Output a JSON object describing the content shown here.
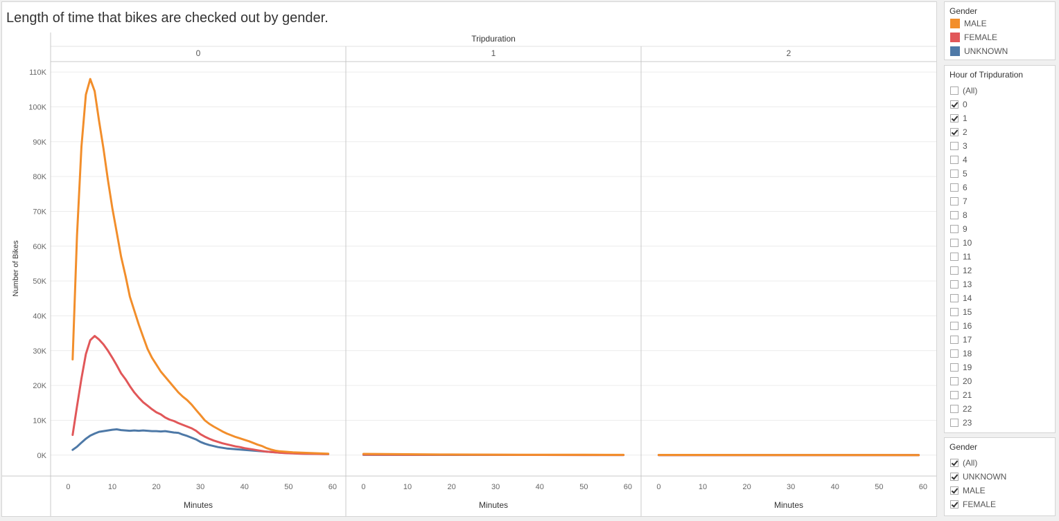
{
  "title": "Length of time that bikes are checked out by gender.",
  "chart_data": {
    "type": "line",
    "title": "Length of time that bikes are checked out by gender.",
    "column_header": "Tripduration",
    "panels": [
      "0",
      "1",
      "2"
    ],
    "xlabel": "Minutes",
    "ylabel": "Number of Bikes",
    "xlim": [
      -4,
      63
    ],
    "ylim": [
      -6000,
      113000
    ],
    "x_ticks": [
      0,
      10,
      20,
      30,
      40,
      50,
      60
    ],
    "y_ticks": [
      0,
      10000,
      20000,
      30000,
      40000,
      50000,
      60000,
      70000,
      80000,
      90000,
      100000,
      110000
    ],
    "y_tick_labels": [
      "0K",
      "10K",
      "20K",
      "30K",
      "40K",
      "50K",
      "60K",
      "70K",
      "80K",
      "90K",
      "100K",
      "110K"
    ],
    "grid": true,
    "series": [
      {
        "name": "MALE",
        "color": "#f28e2b",
        "panels": [
          [
            [
              1,
              27500
            ],
            [
              2,
              63000
            ],
            [
              3,
              88500
            ],
            [
              4,
              103500
            ],
            [
              5,
              108000
            ],
            [
              6,
              104500
            ],
            [
              7,
              96000
            ],
            [
              8,
              88000
            ],
            [
              9,
              79000
            ],
            [
              10,
              71000
            ],
            [
              11,
              64000
            ],
            [
              12,
              57000
            ],
            [
              13,
              51500
            ],
            [
              14,
              45500
            ],
            [
              15,
              41500
            ],
            [
              16,
              37500
            ],
            [
              17,
              34000
            ],
            [
              18,
              30500
            ],
            [
              19,
              28000
            ],
            [
              20,
              26000
            ],
            [
              21,
              24000
            ],
            [
              22,
              22500
            ],
            [
              23,
              21000
            ],
            [
              24,
              19500
            ],
            [
              25,
              18000
            ],
            [
              26,
              16800
            ],
            [
              27,
              15800
            ],
            [
              28,
              14500
            ],
            [
              29,
              13000
            ],
            [
              30,
              11500
            ],
            [
              31,
              10000
            ],
            [
              32,
              9000
            ],
            [
              33,
              8200
            ],
            [
              34,
              7500
            ],
            [
              35,
              6800
            ],
            [
              36,
              6200
            ],
            [
              37,
              5700
            ],
            [
              38,
              5200
            ],
            [
              39,
              4800
            ],
            [
              40,
              4400
            ],
            [
              41,
              4000
            ],
            [
              42,
              3500
            ],
            [
              43,
              3000
            ],
            [
              44,
              2600
            ],
            [
              45,
              2000
            ],
            [
              46,
              1600
            ],
            [
              47,
              1300
            ],
            [
              48,
              1100
            ],
            [
              49,
              1000
            ],
            [
              50,
              900
            ],
            [
              51,
              800
            ],
            [
              52,
              750
            ],
            [
              53,
              700
            ],
            [
              54,
              650
            ],
            [
              55,
              600
            ],
            [
              56,
              550
            ],
            [
              57,
              500
            ],
            [
              58,
              450
            ],
            [
              59,
              400
            ]
          ],
          [
            [
              0,
              350
            ],
            [
              5,
              300
            ],
            [
              10,
              250
            ],
            [
              15,
              200
            ],
            [
              20,
              180
            ],
            [
              25,
              150
            ],
            [
              30,
              130
            ],
            [
              35,
              120
            ],
            [
              40,
              110
            ],
            [
              45,
              100
            ],
            [
              50,
              90
            ],
            [
              55,
              80
            ],
            [
              59,
              70
            ]
          ],
          [
            [
              0,
              60
            ],
            [
              10,
              50
            ],
            [
              20,
              45
            ],
            [
              30,
              40
            ],
            [
              40,
              35
            ],
            [
              50,
              30
            ],
            [
              59,
              25
            ]
          ]
        ]
      },
      {
        "name": "FEMALE",
        "color": "#e15759",
        "panels": [
          [
            [
              1,
              5800
            ],
            [
              2,
              14000
            ],
            [
              3,
              22000
            ],
            [
              4,
              29000
            ],
            [
              5,
              33000
            ],
            [
              6,
              34200
            ],
            [
              7,
              33200
            ],
            [
              8,
              31800
            ],
            [
              9,
              30000
            ],
            [
              10,
              28000
            ],
            [
              11,
              25800
            ],
            [
              12,
              23500
            ],
            [
              13,
              21800
            ],
            [
              14,
              19800
            ],
            [
              15,
              18000
            ],
            [
              16,
              16500
            ],
            [
              17,
              15200
            ],
            [
              18,
              14200
            ],
            [
              19,
              13200
            ],
            [
              20,
              12300
            ],
            [
              21,
              11700
            ],
            [
              22,
              10800
            ],
            [
              23,
              10200
            ],
            [
              24,
              9800
            ],
            [
              25,
              9200
            ],
            [
              26,
              8700
            ],
            [
              27,
              8200
            ],
            [
              28,
              7700
            ],
            [
              29,
              7000
            ],
            [
              30,
              6000
            ],
            [
              31,
              5300
            ],
            [
              32,
              4700
            ],
            [
              33,
              4200
            ],
            [
              34,
              3800
            ],
            [
              35,
              3400
            ],
            [
              36,
              3100
            ],
            [
              37,
              2800
            ],
            [
              38,
              2500
            ],
            [
              39,
              2300
            ],
            [
              40,
              2000
            ],
            [
              41,
              1800
            ],
            [
              42,
              1600
            ],
            [
              43,
              1400
            ],
            [
              44,
              1200
            ],
            [
              45,
              1000
            ],
            [
              46,
              900
            ],
            [
              47,
              800
            ],
            [
              48,
              700
            ],
            [
              49,
              600
            ],
            [
              50,
              550
            ],
            [
              51,
              500
            ],
            [
              52,
              450
            ],
            [
              53,
              420
            ],
            [
              54,
              400
            ],
            [
              55,
              380
            ],
            [
              56,
              360
            ],
            [
              57,
              340
            ],
            [
              58,
              320
            ],
            [
              59,
              300
            ]
          ],
          [
            [
              0,
              150
            ],
            [
              10,
              110
            ],
            [
              20,
              90
            ],
            [
              30,
              70
            ],
            [
              40,
              55
            ],
            [
              50,
              45
            ],
            [
              59,
              40
            ]
          ],
          [
            [
              0,
              25
            ],
            [
              20,
              20
            ],
            [
              40,
              15
            ],
            [
              59,
              12
            ]
          ]
        ]
      },
      {
        "name": "UNKNOWN",
        "color": "#4e79a7",
        "panels": [
          [
            [
              1,
              1500
            ],
            [
              2,
              2400
            ],
            [
              3,
              3600
            ],
            [
              4,
              4700
            ],
            [
              5,
              5600
            ],
            [
              6,
              6200
            ],
            [
              7,
              6700
            ],
            [
              8,
              6900
            ],
            [
              9,
              7100
            ],
            [
              10,
              7300
            ],
            [
              11,
              7400
            ],
            [
              12,
              7200
            ],
            [
              13,
              7100
            ],
            [
              14,
              7000
            ],
            [
              15,
              7100
            ],
            [
              16,
              7000
            ],
            [
              17,
              7100
            ],
            [
              18,
              7000
            ],
            [
              19,
              6900
            ],
            [
              20,
              6900
            ],
            [
              21,
              6800
            ],
            [
              22,
              6900
            ],
            [
              23,
              6700
            ],
            [
              24,
              6500
            ],
            [
              25,
              6400
            ],
            [
              26,
              5900
            ],
            [
              27,
              5500
            ],
            [
              28,
              5000
            ],
            [
              29,
              4500
            ],
            [
              30,
              3800
            ],
            [
              31,
              3300
            ],
            [
              32,
              2900
            ],
            [
              33,
              2600
            ],
            [
              34,
              2300
            ],
            [
              35,
              2100
            ],
            [
              36,
              1900
            ],
            [
              37,
              1800
            ],
            [
              38,
              1700
            ],
            [
              39,
              1600
            ],
            [
              40,
              1500
            ],
            [
              41,
              1400
            ],
            [
              42,
              1300
            ],
            [
              43,
              1200
            ],
            [
              44,
              1100
            ],
            [
              45,
              1000
            ],
            [
              46,
              900
            ],
            [
              47,
              800
            ],
            [
              48,
              700
            ],
            [
              49,
              650
            ],
            [
              50,
              600
            ],
            [
              51,
              550
            ],
            [
              52,
              500
            ],
            [
              53,
              450
            ],
            [
              54,
              420
            ],
            [
              55,
              400
            ],
            [
              56,
              380
            ],
            [
              57,
              360
            ],
            [
              58,
              340
            ],
            [
              59,
              320
            ]
          ],
          [
            [
              0,
              80
            ],
            [
              20,
              60
            ],
            [
              40,
              50
            ],
            [
              59,
              40
            ]
          ],
          [
            [
              0,
              15
            ],
            [
              30,
              10
            ],
            [
              59,
              8
            ]
          ]
        ]
      }
    ]
  },
  "legend": {
    "title": "Gender",
    "items": [
      {
        "label": "MALE",
        "color": "#f28e2b"
      },
      {
        "label": "FEMALE",
        "color": "#e15759"
      },
      {
        "label": "UNKNOWN",
        "color": "#4e79a7"
      }
    ]
  },
  "hour_filter": {
    "title": "Hour of Tripduration",
    "items": [
      {
        "label": "(All)",
        "checked": false
      },
      {
        "label": "0",
        "checked": true
      },
      {
        "label": "1",
        "checked": true
      },
      {
        "label": "2",
        "checked": true
      },
      {
        "label": "3",
        "checked": false
      },
      {
        "label": "4",
        "checked": false
      },
      {
        "label": "5",
        "checked": false
      },
      {
        "label": "6",
        "checked": false
      },
      {
        "label": "7",
        "checked": false
      },
      {
        "label": "8",
        "checked": false
      },
      {
        "label": "9",
        "checked": false
      },
      {
        "label": "10",
        "checked": false
      },
      {
        "label": "11",
        "checked": false
      },
      {
        "label": "12",
        "checked": false
      },
      {
        "label": "13",
        "checked": false
      },
      {
        "label": "14",
        "checked": false
      },
      {
        "label": "15",
        "checked": false
      },
      {
        "label": "16",
        "checked": false
      },
      {
        "label": "17",
        "checked": false
      },
      {
        "label": "18",
        "checked": false
      },
      {
        "label": "19",
        "checked": false
      },
      {
        "label": "20",
        "checked": false
      },
      {
        "label": "21",
        "checked": false
      },
      {
        "label": "22",
        "checked": false
      },
      {
        "label": "23",
        "checked": false
      }
    ]
  },
  "gender_filter": {
    "title": "Gender",
    "items": [
      {
        "label": "(All)",
        "checked": true
      },
      {
        "label": "UNKNOWN",
        "checked": true
      },
      {
        "label": "MALE",
        "checked": true
      },
      {
        "label": "FEMALE",
        "checked": true
      }
    ]
  }
}
